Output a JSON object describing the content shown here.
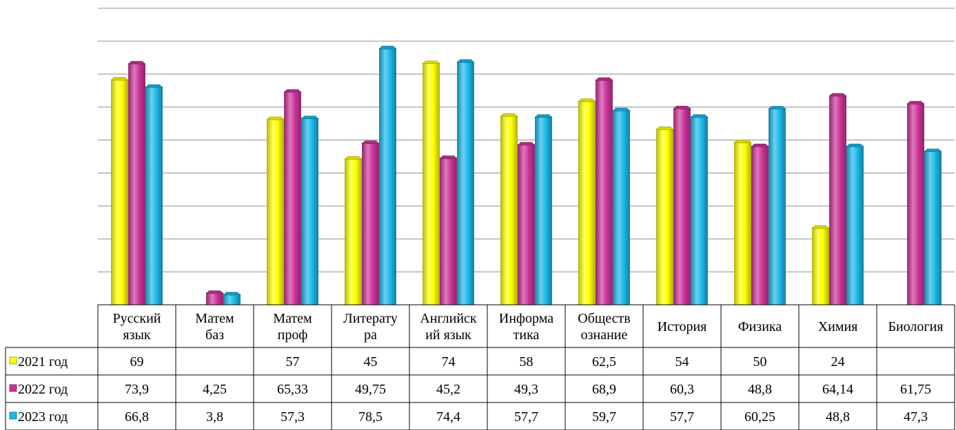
{
  "chart_data": {
    "type": "bar",
    "title": "",
    "xlabel": "",
    "ylabel": "",
    "ylim": [
      0,
      90
    ],
    "grid": true,
    "legend": "data-table-left",
    "categories": [
      [
        "Русский",
        "язык"
      ],
      [
        "Матем",
        "баз"
      ],
      [
        "Матем",
        "проф"
      ],
      [
        "Литерату",
        "ра"
      ],
      [
        "Английск",
        "ий язык"
      ],
      [
        "Информа",
        "тика"
      ],
      [
        "Обществ",
        "ознание"
      ],
      [
        "История"
      ],
      [
        "Физика"
      ],
      [
        "Химия"
      ],
      [
        "Биология"
      ]
    ],
    "series": [
      {
        "name": "2021 год",
        "color": "#ffff00",
        "values": [
          69,
          null,
          57,
          45,
          74,
          58,
          62.5,
          54,
          50,
          24,
          null
        ],
        "labels": [
          "69",
          "",
          "57",
          "45",
          "74",
          "58",
          "62,5",
          "54",
          "50",
          "24",
          ""
        ]
      },
      {
        "name": "2022 год",
        "color": "#cc3399",
        "values": [
          73.9,
          4.25,
          65.33,
          49.75,
          45.2,
          49.3,
          68.9,
          60.3,
          48.8,
          64.14,
          61.75
        ],
        "labels": [
          "73,9",
          "4,25",
          "65,33",
          "49,75",
          "45,2",
          "49,3",
          "68,9",
          "60,3",
          "48,8",
          "64,14",
          "61,75"
        ]
      },
      {
        "name": "2023 год",
        "color": "#1ab8e8",
        "values": [
          66.8,
          3.8,
          57.3,
          78.5,
          74.4,
          57.7,
          59.7,
          57.7,
          60.25,
          48.8,
          47.3
        ],
        "labels": [
          "66,8",
          "3,8",
          "57,3",
          "78,5",
          "74,4",
          "57,7",
          "59,7",
          "57,7",
          "60,25",
          "48,8",
          "47,3"
        ]
      }
    ]
  }
}
